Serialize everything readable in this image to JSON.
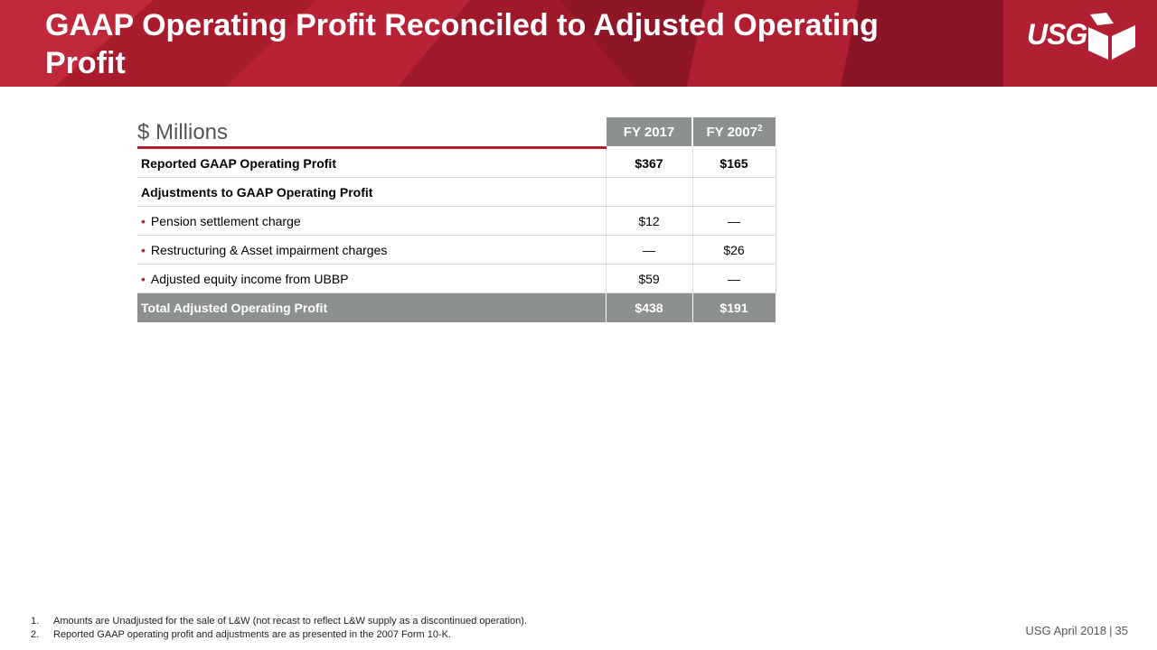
{
  "header": {
    "title": "GAAP Operating Profit Reconciled to Adjusted Operating Profit",
    "logo_text": "USG"
  },
  "table": {
    "units_label": "$ Millions",
    "columns": [
      {
        "label": "FY 2017",
        "sup": ""
      },
      {
        "label": "FY 2007",
        "sup": "2"
      }
    ],
    "rows": [
      {
        "label": "Reported GAAP Operating Profit",
        "v1": "$367",
        "v2": "$165"
      },
      {
        "label": "Adjustments to GAAP Operating Profit",
        "v1": "",
        "v2": ""
      },
      {
        "bullet": "•",
        "label": "Pension settlement charge",
        "v1": "$12",
        "v2": "—"
      },
      {
        "bullet": "•",
        "label": "Restructuring & Asset impairment charges",
        "v1": "—",
        "v2": "$26"
      },
      {
        "bullet": "•",
        "label": "Adjusted equity income from UBBP",
        "v1": "$59",
        "v2": "—"
      },
      {
        "label": "Total Adjusted Operating Profit",
        "v1": "$438",
        "v2": "$191"
      }
    ]
  },
  "footnotes": [
    {
      "num": "1.",
      "text": "Amounts are Unadjusted for the sale of L&W (not recast to reflect L&W supply as a discontinued operation)."
    },
    {
      "num": "2.",
      "text": "Reported GAAP operating profit and adjustments are as presented in the 2007 Form 10-K."
    }
  ],
  "footer": {
    "source": "USG April 2018",
    "separator": "|",
    "page_number": "35"
  },
  "colors": {
    "brand_red": "#b21f32",
    "header_gray": "#8c9091"
  }
}
